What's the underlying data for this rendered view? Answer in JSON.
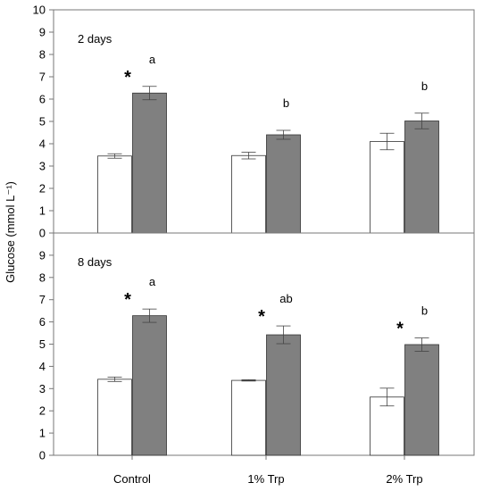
{
  "chart_data": {
    "type": "bar",
    "ylabel": "Glucose (mmol L⁻¹)",
    "categories": [
      "Control",
      "1% Trp",
      "2% Trp"
    ],
    "colors": {
      "white_bar": "#ffffff",
      "gray_bar": "#808080",
      "edge": "#333333"
    },
    "panels": [
      {
        "label": "2 days",
        "ylim": [
          0,
          10
        ],
        "yticks": [
          "0",
          "1",
          "2",
          "3",
          "4",
          "5",
          "6",
          "7",
          "8",
          "9",
          "10"
        ],
        "series": [
          {
            "color": "white_bar",
            "values": [
              3.45,
              3.47,
              4.1
            ],
            "errors": [
              0.1,
              0.15,
              0.37
            ]
          },
          {
            "color": "gray_bar",
            "values": [
              6.27,
              4.4,
              5.02
            ],
            "errors": [
              0.3,
              0.2,
              0.35
            ]
          }
        ],
        "annotations": [
          {
            "category": 0,
            "asterisk": true,
            "letter": "a"
          },
          {
            "category": 1,
            "asterisk": false,
            "letter": "b"
          },
          {
            "category": 2,
            "asterisk": false,
            "letter": "b"
          }
        ]
      },
      {
        "label": "8 days",
        "ylim": [
          0,
          10
        ],
        "yticks": [
          "0",
          "1",
          "2",
          "3",
          "4",
          "5",
          "6",
          "7",
          "8",
          "9"
        ],
        "series": [
          {
            "color": "white_bar",
            "values": [
              3.42,
              3.37,
              2.62
            ],
            "errors": [
              0.1,
              0.03,
              0.4
            ]
          },
          {
            "color": "gray_bar",
            "values": [
              6.28,
              5.42,
              4.98
            ],
            "errors": [
              0.3,
              0.4,
              0.3
            ]
          }
        ],
        "annotations": [
          {
            "category": 0,
            "asterisk": true,
            "letter": "a"
          },
          {
            "category": 1,
            "asterisk": true,
            "letter": "ab"
          },
          {
            "category": 2,
            "asterisk": true,
            "letter": "b"
          }
        ]
      }
    ]
  }
}
